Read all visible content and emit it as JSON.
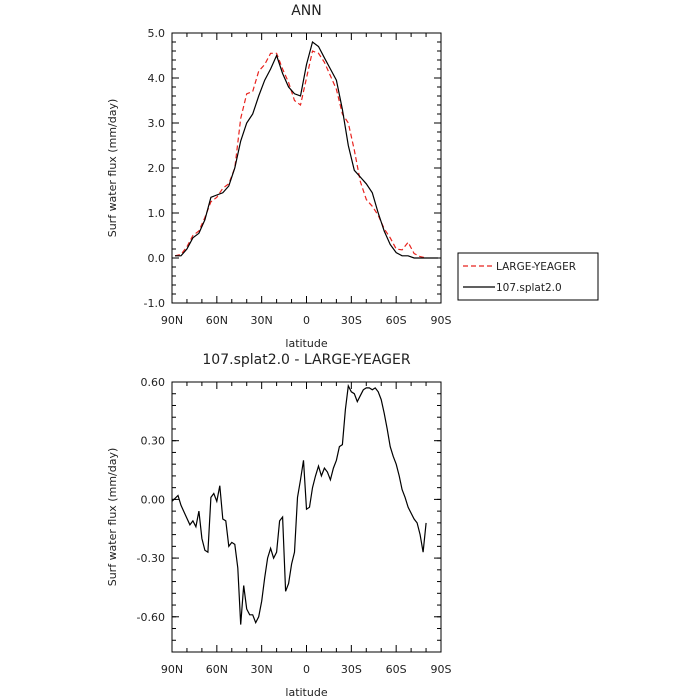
{
  "chart_data": [
    {
      "type": "line",
      "title": "ANN",
      "xlabel": "latitude",
      "ylabel": "Surf water flux (mm/day)",
      "ylim": [
        -1.0,
        5.0
      ],
      "xlim": [
        90,
        -90
      ],
      "yticks": [
        -1.0,
        0.0,
        1.0,
        2.0,
        3.0,
        4.0,
        5.0
      ],
      "ytick_labels": [
        "-1.0",
        "0.0",
        "1.0",
        "2.0",
        "3.0",
        "4.0",
        "5.0"
      ],
      "xticks": [
        90,
        60,
        30,
        0,
        -30,
        -60,
        -90
      ],
      "xtick_labels": [
        "90N",
        "60N",
        "30N",
        "0",
        "30S",
        "60S",
        "90S"
      ],
      "grid": false,
      "legend_position": "right",
      "series": [
        {
          "name": "LARGE-YEAGER",
          "color": "#e8231e",
          "dash": "dashed",
          "x": [
            88,
            84,
            80,
            76,
            72,
            68,
            64,
            60,
            56,
            52,
            48,
            44,
            40,
            36,
            32,
            28,
            24,
            20,
            16,
            12,
            8,
            4,
            0,
            -4,
            -8,
            -12,
            -16,
            -20,
            -24,
            -28,
            -32,
            -36,
            -40,
            -44,
            -48,
            -52,
            -56,
            -60,
            -64,
            -68,
            -72,
            -76,
            -80
          ],
          "y": [
            0.05,
            0.08,
            0.25,
            0.5,
            0.6,
            0.9,
            1.25,
            1.35,
            1.55,
            1.65,
            2.0,
            3.1,
            3.65,
            3.7,
            4.15,
            4.3,
            4.55,
            4.55,
            4.2,
            3.9,
            3.5,
            3.4,
            4.0,
            4.6,
            4.55,
            4.35,
            4.05,
            3.75,
            3.2,
            3.0,
            2.4,
            1.7,
            1.3,
            1.15,
            0.95,
            0.65,
            0.45,
            0.2,
            0.18,
            0.35,
            0.1,
            0.03,
            0.0
          ]
        },
        {
          "name": "107.splat2.0",
          "color": "#000000",
          "dash": "solid",
          "x": [
            88,
            84,
            80,
            76,
            72,
            68,
            64,
            60,
            56,
            52,
            48,
            44,
            40,
            36,
            32,
            28,
            24,
            20,
            16,
            12,
            8,
            4,
            0,
            -4,
            -8,
            -12,
            -16,
            -20,
            -24,
            -28,
            -32,
            -36,
            -40,
            -44,
            -48,
            -52,
            -56,
            -60,
            -64,
            -68,
            -72,
            -76,
            -80,
            -84,
            -88
          ],
          "y": [
            0.05,
            0.05,
            0.2,
            0.45,
            0.55,
            0.85,
            1.35,
            1.4,
            1.45,
            1.6,
            2.0,
            2.6,
            3.0,
            3.2,
            3.6,
            3.95,
            4.2,
            4.5,
            4.1,
            3.8,
            3.65,
            3.6,
            4.3,
            4.8,
            4.7,
            4.45,
            4.2,
            3.95,
            3.3,
            2.5,
            1.95,
            1.8,
            1.65,
            1.45,
            1.0,
            0.6,
            0.3,
            0.12,
            0.05,
            0.05,
            0.0,
            0.0,
            0.0,
            0.0,
            0.0
          ]
        }
      ]
    },
    {
      "type": "line",
      "title": "107.splat2.0 - LARGE-YEAGER",
      "xlabel": "latitude",
      "ylabel": "Surf water flux (mm/day)",
      "ylim": [
        -0.78,
        0.6
      ],
      "xlim": [
        90,
        -90
      ],
      "yticks": [
        -0.6,
        -0.3,
        0.0,
        0.3,
        0.6
      ],
      "ytick_labels": [
        "-0.60",
        "-0.30",
        "0.00",
        "0.30",
        "0.60"
      ],
      "xticks": [
        90,
        60,
        30,
        0,
        -30,
        -60,
        -90
      ],
      "xtick_labels": [
        "90N",
        "60N",
        "30N",
        "0",
        "30S",
        "60S",
        "90S"
      ],
      "grid": false,
      "series": [
        {
          "color": "#000000",
          "dash": "solid",
          "x": [
            90,
            86,
            84,
            81,
            78,
            76,
            74,
            72,
            70,
            68,
            66,
            64,
            62,
            60,
            58,
            56,
            54,
            52,
            50,
            48,
            46,
            44,
            42,
            40,
            38,
            36,
            34,
            32,
            30,
            28,
            26,
            24,
            22,
            20,
            18,
            16,
            14,
            12,
            10,
            8,
            6,
            4,
            2,
            0,
            -2,
            -4,
            -6,
            -8,
            -10,
            -12,
            -14,
            -16,
            -18,
            -20,
            -22,
            -24,
            -26,
            -28,
            -30,
            -32,
            -34,
            -36,
            -38,
            -40,
            -42,
            -44,
            -46,
            -48,
            -50,
            -52,
            -54,
            -56,
            -58,
            -60,
            -62,
            -64,
            -66,
            -68,
            -70,
            -72,
            -74,
            -76,
            -78,
            -80
          ],
          "y": [
            -0.01,
            0.02,
            -0.03,
            -0.08,
            -0.13,
            -0.11,
            -0.14,
            -0.06,
            -0.2,
            -0.26,
            -0.27,
            0.01,
            0.03,
            -0.01,
            0.07,
            -0.1,
            -0.11,
            -0.24,
            -0.22,
            -0.23,
            -0.35,
            -0.64,
            -0.44,
            -0.56,
            -0.59,
            -0.59,
            -0.63,
            -0.6,
            -0.52,
            -0.4,
            -0.3,
            -0.25,
            -0.3,
            -0.27,
            -0.11,
            -0.09,
            -0.47,
            -0.43,
            -0.33,
            -0.27,
            0.01,
            0.1,
            0.2,
            -0.05,
            -0.04,
            0.06,
            0.12,
            0.17,
            0.12,
            0.16,
            0.14,
            0.1,
            0.16,
            0.2,
            0.27,
            0.28,
            0.46,
            0.58,
            0.55,
            0.54,
            0.5,
            0.53,
            0.56,
            0.57,
            0.57,
            0.56,
            0.57,
            0.55,
            0.51,
            0.44,
            0.36,
            0.27,
            0.22,
            0.18,
            0.12,
            0.05,
            0.01,
            -0.04,
            -0.07,
            -0.1,
            -0.12,
            -0.18,
            -0.27,
            -0.12
          ]
        }
      ]
    }
  ]
}
